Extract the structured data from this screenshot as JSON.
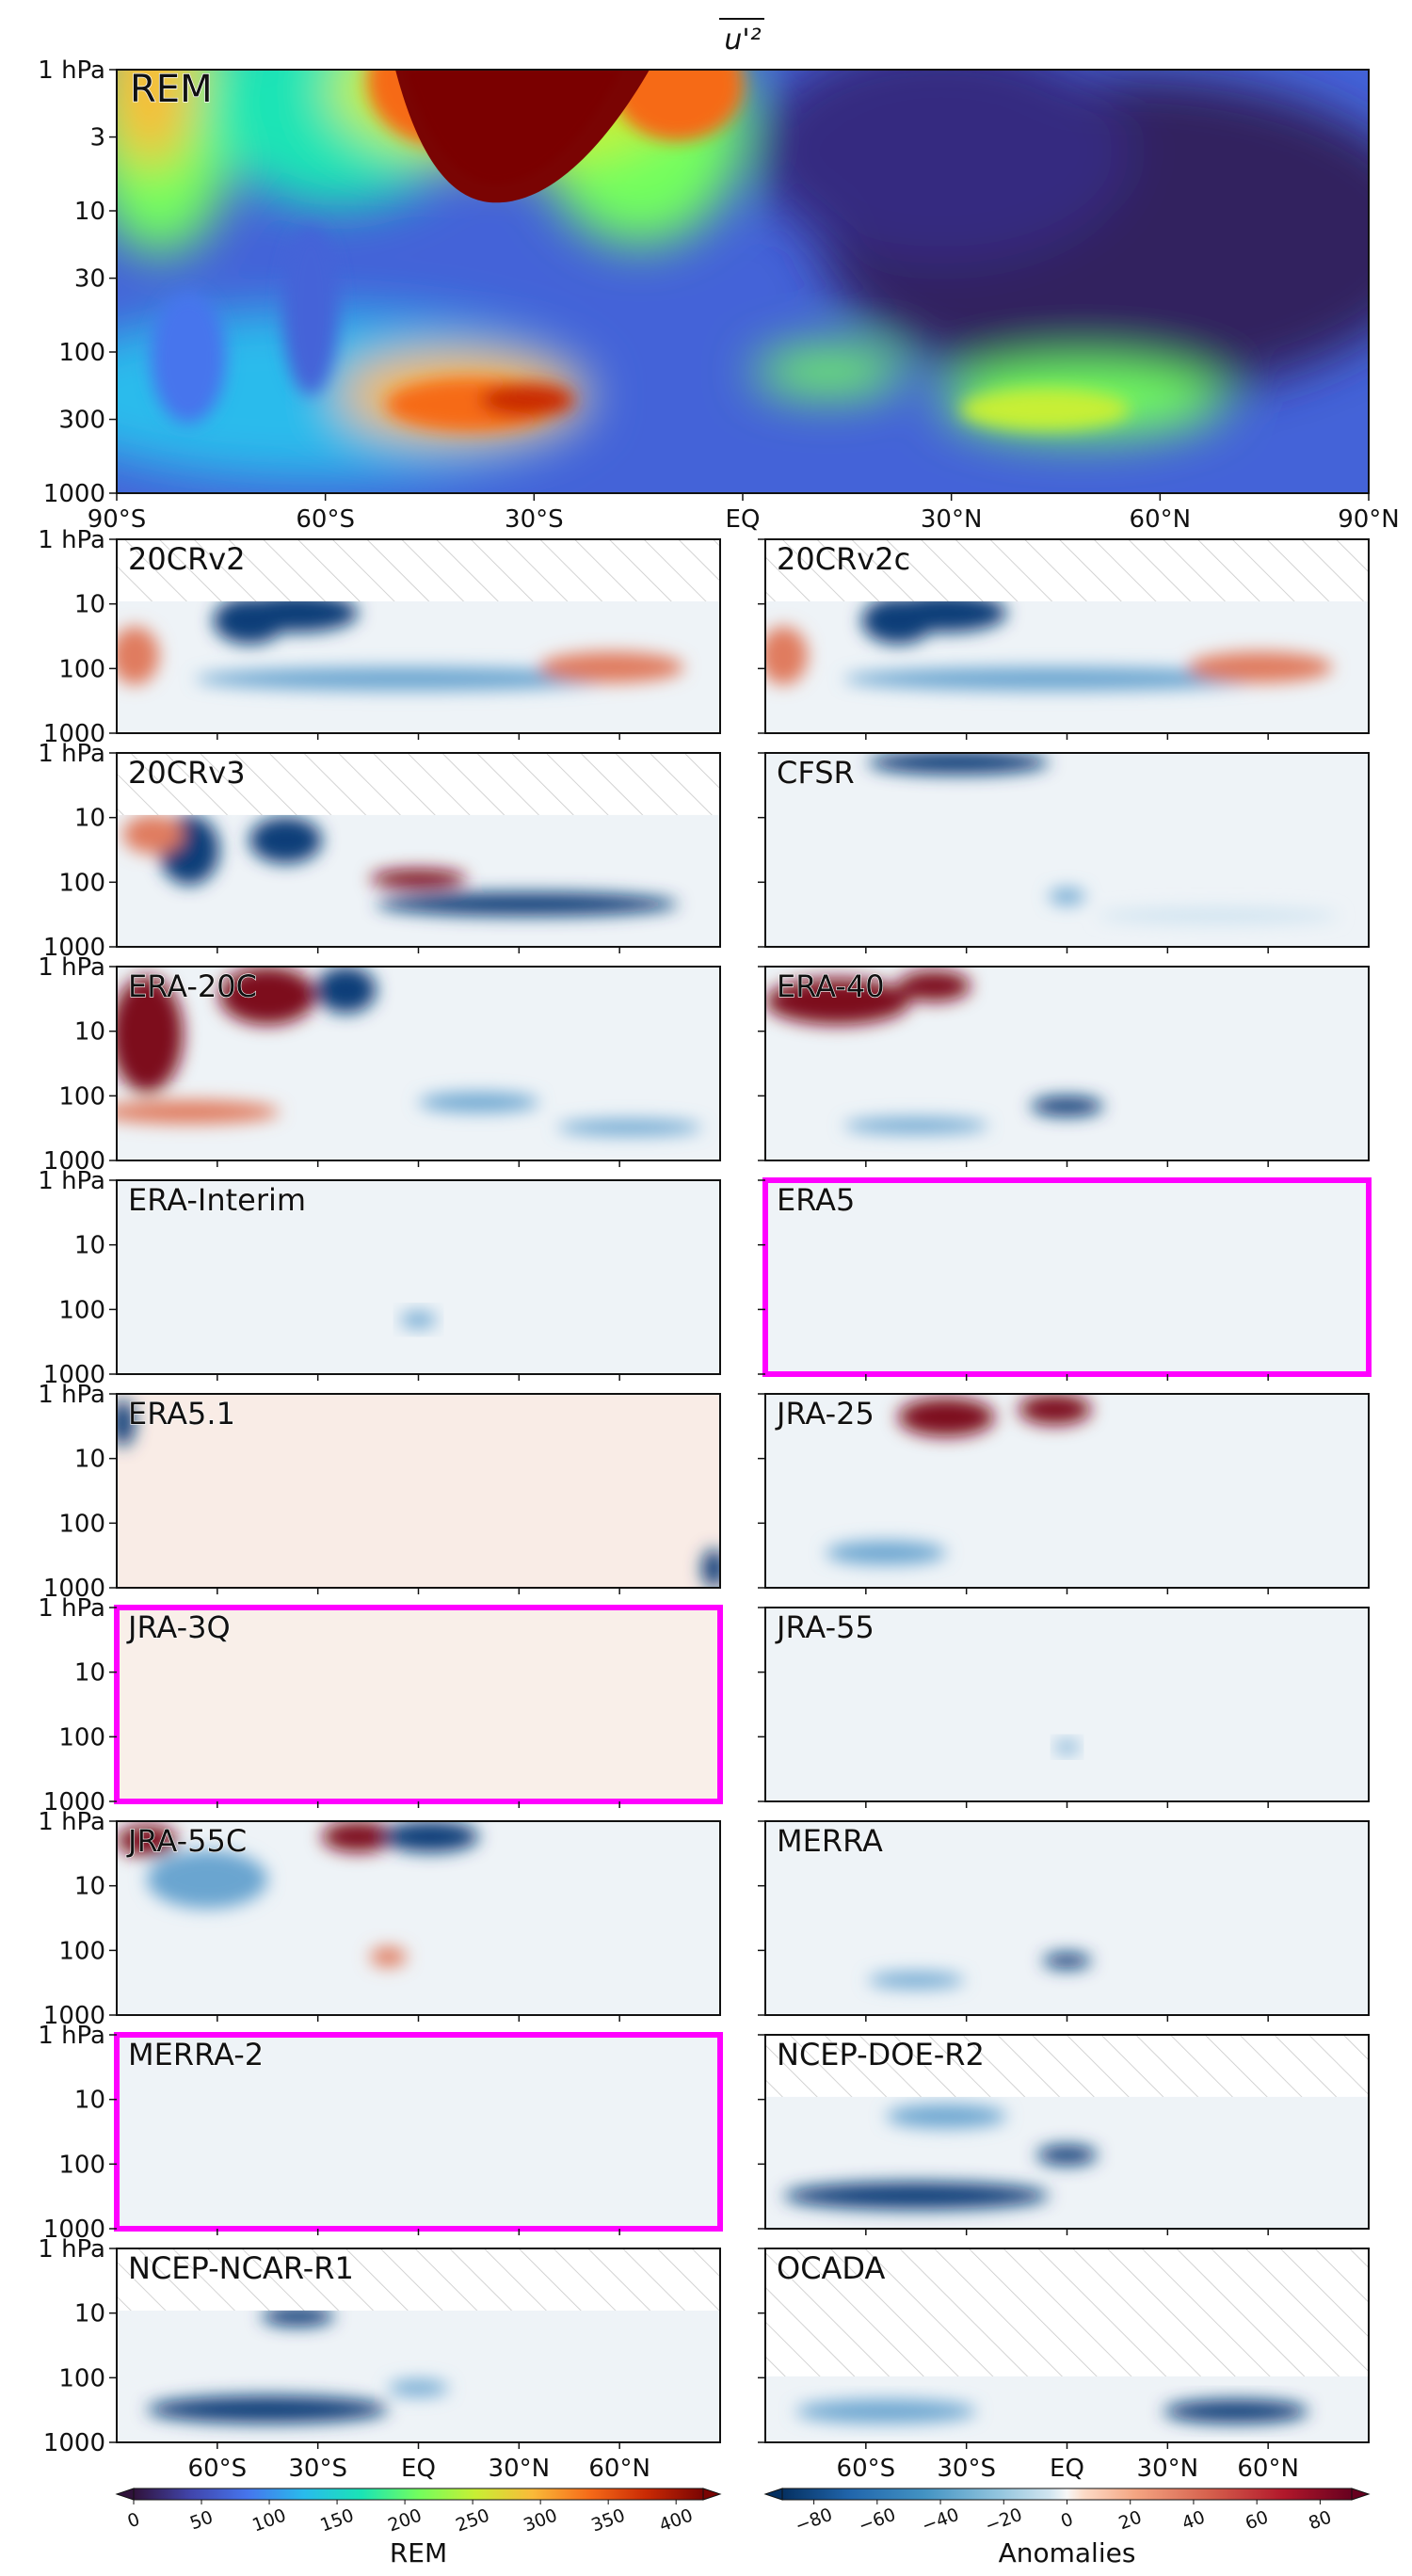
{
  "chart_data": [
    {
      "type": "heatmap",
      "panel": "REM",
      "title": "u'²",
      "x_ticks": [
        "90°S",
        "60°S",
        "30°S",
        "EQ",
        "30°N",
        "60°N",
        "90°N"
      ],
      "x_values": [
        -90,
        -60,
        -30,
        0,
        30,
        60,
        90
      ],
      "y_ticks": [
        "1 hPa",
        "3",
        "10",
        "30",
        "100",
        "300",
        "1000"
      ],
      "y_values": [
        1,
        3,
        10,
        30,
        100,
        300,
        1000
      ],
      "y_scale": "log (pressure, inverted)",
      "colorbar": {
        "label": "REM",
        "ticks": [
          "0",
          "50",
          "100",
          "150",
          "200",
          "250",
          "300",
          "350",
          "400"
        ],
        "range": [
          0,
          420
        ],
        "colormap": "jet / turbo",
        "extend": "both"
      },
      "features": [
        {
          "description": "stratospheric jet maximum (>400)",
          "lat": -45,
          "p_hPa": 2
        },
        {
          "description": "SH upper-tropospheric maximum",
          "lat": -35,
          "p_hPa": 250
        },
        {
          "description": "NH upper-tropospheric maximum",
          "lat": 45,
          "p_hPa": 250
        }
      ]
    },
    {
      "type": "heatmap",
      "panels": [
        "20CRv2",
        "20CRv2c",
        "20CRv3",
        "CFSR",
        "ERA-20C",
        "ERA-40",
        "ERA-Interim",
        "ERA5",
        "ERA5.1",
        "JRA-25",
        "JRA-3Q",
        "JRA-55",
        "JRA-55C",
        "MERRA",
        "MERRA-2",
        "NCEP-DOE-R2",
        "NCEP-NCAR-R1",
        "OCADA"
      ],
      "highlighted_panels": [
        "ERA5",
        "JRA-3Q",
        "MERRA-2"
      ],
      "x_ticks": [
        "60°S",
        "30°S",
        "EQ",
        "30°N",
        "60°N"
      ],
      "x_values": [
        -60,
        -30,
        0,
        30,
        60
      ],
      "y_ticks": [
        "1 hPa",
        "10",
        "100",
        "1000"
      ],
      "y_values": [
        1,
        10,
        100,
        1000
      ],
      "colorbar": {
        "label": "Anomalies",
        "ticks": [
          "−80",
          "−60",
          "−40",
          "−20",
          "0",
          "20",
          "40",
          "60",
          "80"
        ],
        "range": [
          -90,
          90
        ],
        "colormap": "RdBu_r",
        "extend": "both"
      }
    }
  ],
  "colors": {
    "highlight_border": "#ff00ff",
    "hatch": "#c8c8c8",
    "rem_label": "#ff33ff"
  },
  "rem_label": "REM",
  "rem_title": "u'²",
  "panel_labels": {
    "r1a": "20CRv2",
    "r1b": "20CRv2c",
    "r2a": "20CRv3",
    "r2b": "CFSR",
    "r3a": "ERA-20C",
    "r3b": "ERA-40",
    "r4a": "ERA-Interim",
    "r4b": "ERA5",
    "r5a": "ERA5.1",
    "r5b": "JRA-25",
    "r6a": "JRA-3Q",
    "r6b": "JRA-55",
    "r7a": "JRA-55C",
    "r7b": "MERRA",
    "r8a": "MERRA-2",
    "r8b": "NCEP-DOE-R2",
    "r9a": "NCEP-NCAR-R1",
    "r9b": "OCADA"
  },
  "cbar_labels": {
    "left": "REM",
    "right": "Anomalies"
  }
}
